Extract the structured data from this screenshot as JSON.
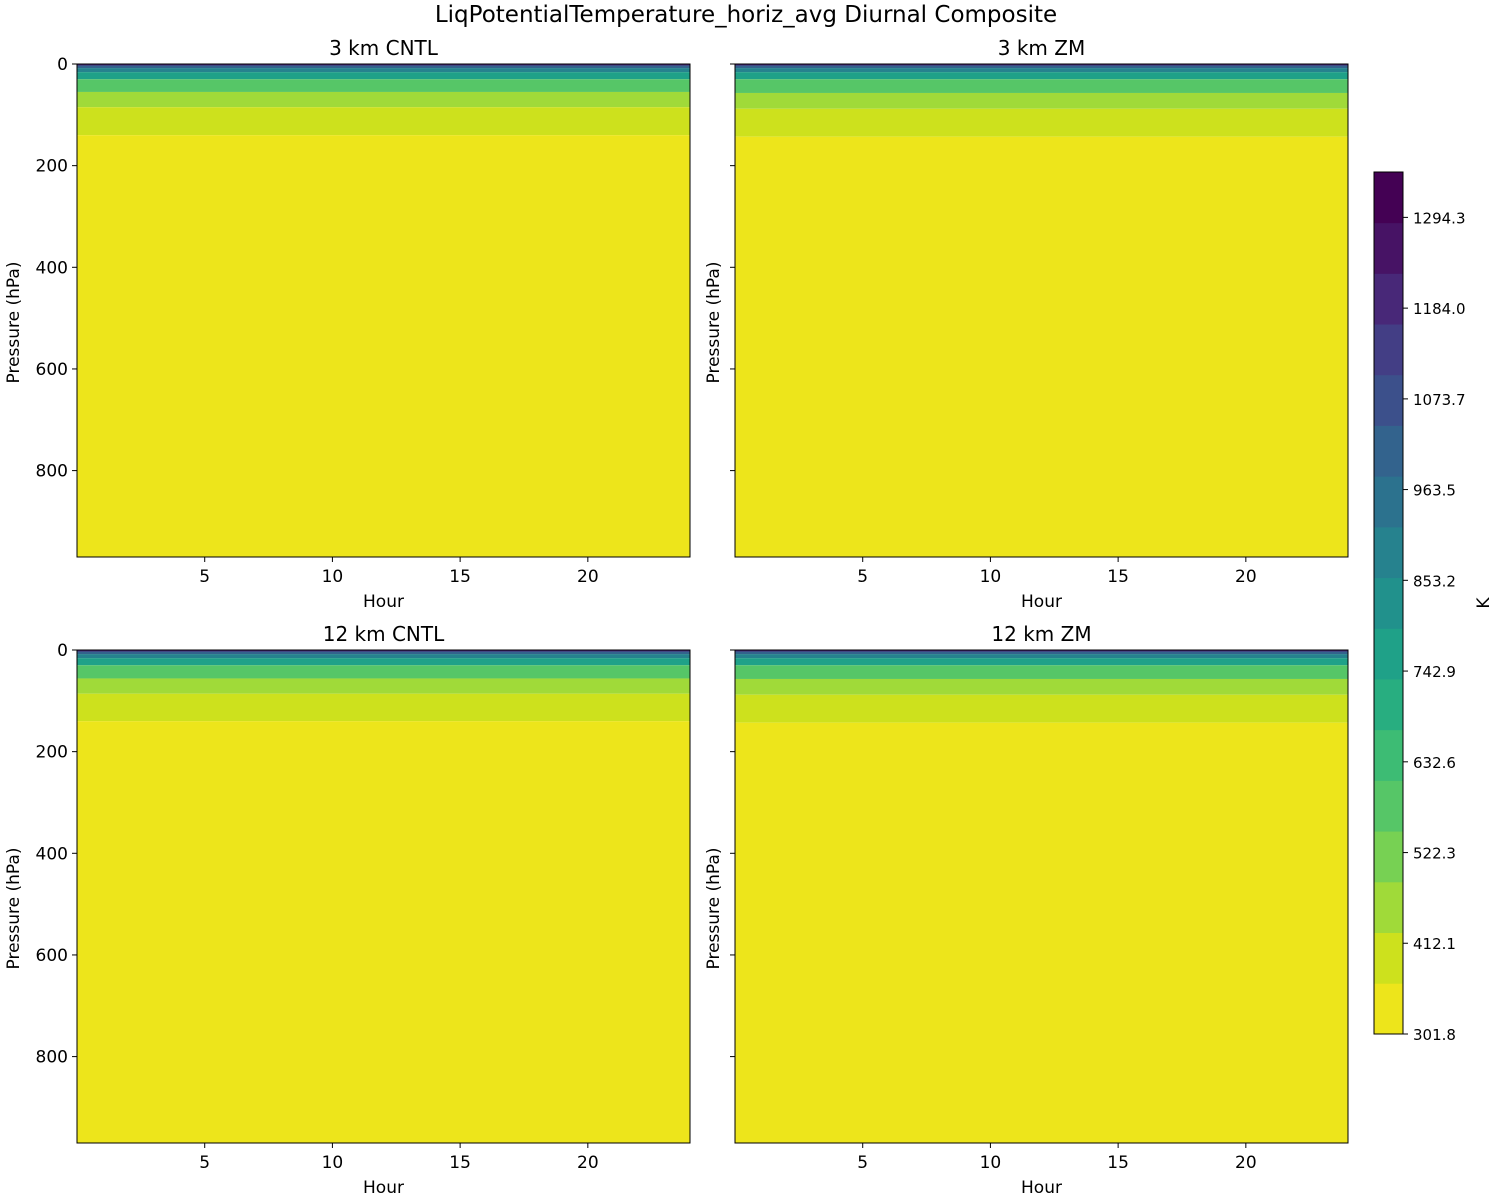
{
  "figure": {
    "title": "LiqPotentialTemperature_horiz_avg Diurnal Composite"
  },
  "chart_data": [
    {
      "type": "heatmap",
      "title": "3 km CNTL",
      "xlabel": "Hour",
      "ylabel": "Pressure (hPa)",
      "xlim": [
        0,
        24
      ],
      "ylim": [
        970,
        0
      ],
      "xticks": [
        5,
        10,
        15,
        20
      ],
      "yticks": [
        0,
        200,
        400,
        600,
        800
      ],
      "ytick_labels_shown": true,
      "level_boundaries_hPa": [
        {
          "pressure": 3,
          "level": 14
        },
        {
          "pressure": 8,
          "level": 11
        },
        {
          "pressure": 16,
          "level": 9
        },
        {
          "pressure": 30,
          "level": 7
        },
        {
          "pressure": 55,
          "level": 4
        },
        {
          "pressure": 85,
          "level": 2
        },
        {
          "pressure": 140,
          "level": 1
        },
        {
          "pressure": 970,
          "level": 0
        }
      ]
    },
    {
      "type": "heatmap",
      "title": "3 km ZM",
      "xlabel": "Hour",
      "ylabel": "Pressure (hPa)",
      "xlim": [
        0,
        24
      ],
      "ylim": [
        970,
        0
      ],
      "xticks": [
        5,
        10,
        15,
        20
      ],
      "yticks": [
        0,
        200,
        400,
        600,
        800
      ],
      "ytick_labels_shown": false,
      "level_boundaries_hPa": [
        {
          "pressure": 3,
          "level": 14
        },
        {
          "pressure": 8,
          "level": 11
        },
        {
          "pressure": 16,
          "level": 9
        },
        {
          "pressure": 30,
          "level": 7
        },
        {
          "pressure": 57,
          "level": 4
        },
        {
          "pressure": 88,
          "level": 2
        },
        {
          "pressure": 143,
          "level": 1
        },
        {
          "pressure": 970,
          "level": 0
        }
      ]
    },
    {
      "type": "heatmap",
      "title": "12 km CNTL",
      "xlabel": "Hour",
      "ylabel": "Pressure (hPa)",
      "xlim": [
        0,
        24
      ],
      "ylim": [
        970,
        0
      ],
      "xticks": [
        5,
        10,
        15,
        20
      ],
      "yticks": [
        0,
        200,
        400,
        600,
        800
      ],
      "ytick_labels_shown": true,
      "level_boundaries_hPa": [
        {
          "pressure": 3,
          "level": 14
        },
        {
          "pressure": 8,
          "level": 11
        },
        {
          "pressure": 16,
          "level": 9
        },
        {
          "pressure": 30,
          "level": 7
        },
        {
          "pressure": 56,
          "level": 4
        },
        {
          "pressure": 86,
          "level": 2
        },
        {
          "pressure": 140,
          "level": 1
        },
        {
          "pressure": 970,
          "level": 0
        }
      ]
    },
    {
      "type": "heatmap",
      "title": "12 km ZM",
      "xlabel": "Hour",
      "ylabel": "Pressure (hPa)",
      "xlim": [
        0,
        24
      ],
      "ylim": [
        970,
        0
      ],
      "xticks": [
        5,
        10,
        15,
        20
      ],
      "yticks": [
        0,
        200,
        400,
        600,
        800
      ],
      "ytick_labels_shown": false,
      "level_boundaries_hPa": [
        {
          "pressure": 3,
          "level": 14
        },
        {
          "pressure": 8,
          "level": 11
        },
        {
          "pressure": 16,
          "level": 9
        },
        {
          "pressure": 30,
          "level": 7
        },
        {
          "pressure": 57,
          "level": 4
        },
        {
          "pressure": 88,
          "level": 2
        },
        {
          "pressure": 143,
          "level": 1
        },
        {
          "pressure": 970,
          "level": 0
        }
      ]
    }
  ],
  "colorbar": {
    "label": "K",
    "min": 301.8,
    "max": 1349.45,
    "tick_values": [
      301.8,
      412.1,
      522.3,
      632.6,
      742.9,
      853.2,
      963.5,
      1073.7,
      1184.0,
      1294.3
    ],
    "tick_labels": [
      "301.8",
      "412.1",
      "522.3",
      "632.6",
      "742.9",
      "853.2",
      "963.5",
      "1073.7",
      "1184.0",
      "1294.3"
    ],
    "colors": [
      "#ede51b",
      "#cde11d",
      "#a0da39",
      "#77d153",
      "#56c667",
      "#3dbc74",
      "#28ae80",
      "#1fa188",
      "#21918c",
      "#26828e",
      "#2c728e",
      "#33638d",
      "#3c508b",
      "#433e85",
      "#482878",
      "#471365",
      "#440154"
    ]
  }
}
